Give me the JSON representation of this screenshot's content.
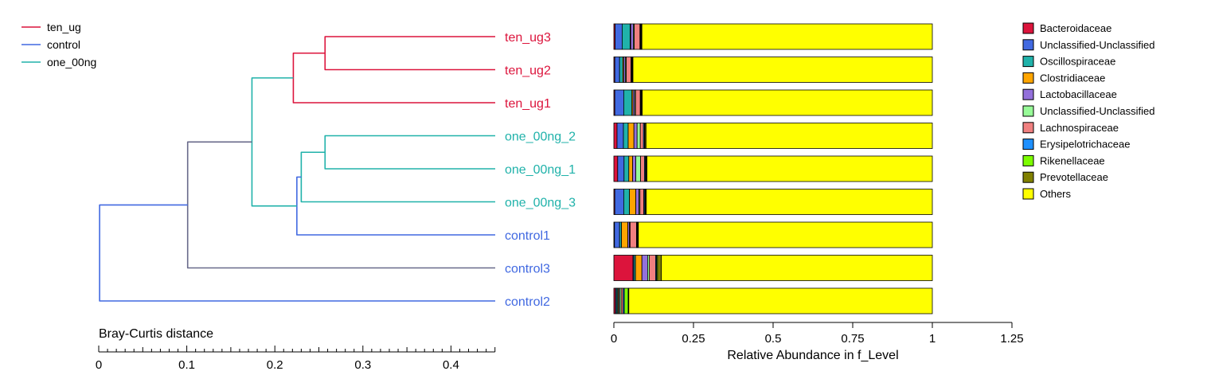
{
  "chart_data": {
    "type": "bar",
    "title": "",
    "tree_legend": [
      {
        "name": "ten_ug",
        "color": "#dc143c"
      },
      {
        "name": "control",
        "color": "#4169e1"
      },
      {
        "name": "one_00ng",
        "color": "#20b2aa"
      }
    ],
    "dendrogram": {
      "xlabel": "Bray-Curtis distance",
      "xticks": [
        0,
        0.1,
        0.2,
        0.3,
        0.4
      ],
      "xmax": 0.45,
      "root_color": "#696a8a",
      "leaves": [
        {
          "name": "ten_ug3",
          "group": "ten_ug"
        },
        {
          "name": "ten_ug2",
          "group": "ten_ug"
        },
        {
          "name": "ten_ug1",
          "group": "ten_ug"
        },
        {
          "name": "one_00ng_2",
          "group": "one_00ng"
        },
        {
          "name": "one_00ng_1",
          "group": "one_00ng"
        },
        {
          "name": "one_00ng_3",
          "group": "one_00ng"
        },
        {
          "name": "control1",
          "group": "control"
        },
        {
          "name": "control3",
          "group": "control"
        },
        {
          "name": "control2",
          "group": "control"
        }
      ],
      "merges": [
        {
          "id": "m1",
          "left": 0,
          "right": 1,
          "height": 0.257,
          "color": "#dc143c"
        },
        {
          "id": "m2",
          "left": "m1",
          "right": 2,
          "height": 0.221,
          "color": "#dc143c"
        },
        {
          "id": "m3",
          "left": 3,
          "right": 4,
          "height": 0.257,
          "color": "#20b2aa"
        },
        {
          "id": "m4",
          "left": "m3",
          "right": 5,
          "height": 0.23,
          "color": "#20b2aa"
        },
        {
          "id": "m5",
          "left": "m4",
          "right": 6,
          "height": 0.225,
          "color": "#4169e1"
        },
        {
          "id": "m6",
          "left": "m2",
          "right": "m5",
          "height": 0.174,
          "color": "#20b2aa"
        },
        {
          "id": "m7",
          "left": "m6",
          "right": 7,
          "height": 0.101,
          "color": "#696a8a"
        },
        {
          "id": "m8",
          "left": "m7",
          "right": 8,
          "height": 0.001,
          "color": "#4169e1"
        }
      ]
    },
    "bars": {
      "xlabel": "Relative Abundance in f_Level",
      "xticks": [
        0,
        0.25,
        0.5,
        0.75,
        1,
        1.25
      ],
      "xtick_labels": [
        "0",
        "0.25",
        "0.5",
        "0.75",
        "1",
        "1.25"
      ],
      "xlim": [
        0,
        1.25
      ],
      "categories": [
        "ten_ug3",
        "ten_ug2",
        "ten_ug1",
        "one_00ng_2",
        "one_00ng_1",
        "one_00ng_3",
        "control1",
        "control3",
        "control2"
      ],
      "series": [
        {
          "name": "Bacteroidaceae",
          "color": "#dc143c",
          "values": [
            0.004,
            0.003,
            0.003,
            0.01,
            0.012,
            0.003,
            0.002,
            0.06,
            0.005
          ]
        },
        {
          "name": "Unclassified-Unclassified",
          "color": "#4169e1",
          "values": [
            0.022,
            0.015,
            0.028,
            0.02,
            0.02,
            0.028,
            0.016,
            0.003,
            0.003
          ]
        },
        {
          "name": "Oscillospiraceae",
          "color": "#20b2aa",
          "values": [
            0.025,
            0.01,
            0.025,
            0.015,
            0.015,
            0.018,
            0.006,
            0.005,
            0.004
          ]
        },
        {
          "name": "Clostridiaceae",
          "color": "#ffa500",
          "values": [
            0.002,
            0.003,
            0.004,
            0.018,
            0.012,
            0.02,
            0.02,
            0.02,
            0.003
          ]
        },
        {
          "name": "Lactobacillaceae",
          "color": "#9370db",
          "values": [
            0.008,
            0.005,
            0.005,
            0.01,
            0.01,
            0.01,
            0.005,
            0.018,
            0.003
          ]
        },
        {
          "name": "Unclassified-Unclassified",
          "color": "#98fb98",
          "values": [
            0.003,
            0.003,
            0.003,
            0.01,
            0.015,
            0.003,
            0.002,
            0.005,
            0.005
          ]
        },
        {
          "name": "Lachnospiraceae",
          "color": "#f08080",
          "values": [
            0.018,
            0.015,
            0.015,
            0.01,
            0.012,
            0.012,
            0.02,
            0.02,
            0.006
          ]
        },
        {
          "name": "Erysipelotrichaceae",
          "color": "#1e90ff",
          "values": [
            0.002,
            0.002,
            0.002,
            0.003,
            0.003,
            0.003,
            0.002,
            0.003,
            0.004
          ]
        },
        {
          "name": "Rikenellaceae",
          "color": "#7cfc00",
          "values": [
            0.002,
            0.002,
            0.002,
            0.002,
            0.002,
            0.002,
            0.002,
            0.003,
            0.012
          ]
        },
        {
          "name": "Prevotellaceae",
          "color": "#808000",
          "values": [
            0.002,
            0.002,
            0.002,
            0.003,
            0.003,
            0.003,
            0.002,
            0.012,
            0.002
          ]
        },
        {
          "name": "Others",
          "color": "#ffff00",
          "values": [
            0.912,
            0.94,
            0.911,
            0.899,
            0.896,
            0.898,
            0.923,
            0.851,
            0.953
          ]
        }
      ]
    }
  }
}
